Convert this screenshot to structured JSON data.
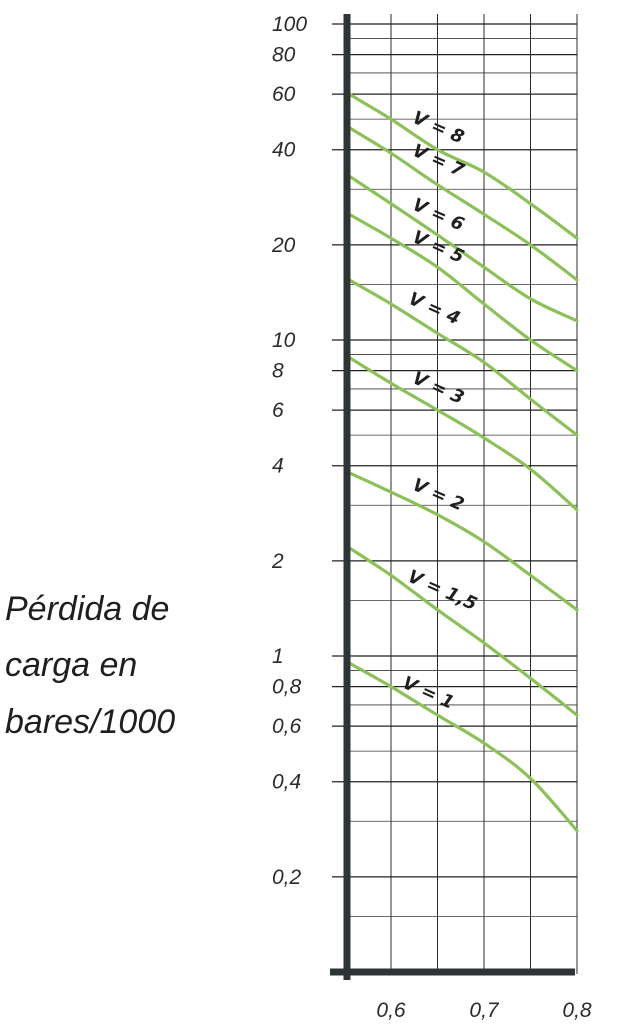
{
  "chart_data": {
    "type": "line",
    "ylabel": [
      "Pérdida de",
      "carga en",
      "bares/1000"
    ],
    "xlabel": "",
    "x_ticks": [
      "0,6",
      "0,7",
      "0,8"
    ],
    "y_ticks": [
      "100",
      "80",
      "60",
      "40",
      "20",
      "10",
      "8",
      "6",
      "4",
      "2",
      "1",
      "0,8",
      "0,6",
      "0,4",
      "0,2"
    ],
    "y_scale": "log",
    "xlim": [
      0.55,
      0.8
    ],
    "ylim": [
      0.1,
      100
    ],
    "grid": true,
    "line_color": "#8cc15a",
    "axis_color": "#2e3436",
    "series": [
      {
        "name": "V = 8",
        "x": [
          0.555,
          0.6,
          0.65,
          0.7,
          0.75,
          0.8
        ],
        "y": [
          60,
          50,
          40,
          34,
          27,
          21
        ]
      },
      {
        "name": "V = 7",
        "x": [
          0.555,
          0.6,
          0.65,
          0.7,
          0.75,
          0.8
        ],
        "y": [
          47,
          39,
          31,
          25,
          20,
          15.5
        ]
      },
      {
        "name": "V = 6",
        "x": [
          0.555,
          0.6,
          0.65,
          0.7,
          0.75,
          0.8
        ],
        "y": [
          33,
          27,
          21.5,
          17,
          13.5,
          11.5
        ]
      },
      {
        "name": "V = 5",
        "x": [
          0.555,
          0.6,
          0.65,
          0.7,
          0.75,
          0.8
        ],
        "y": [
          25,
          21,
          17,
          13,
          10,
          8
        ]
      },
      {
        "name": "V = 4",
        "x": [
          0.555,
          0.6,
          0.65,
          0.7,
          0.75,
          0.8
        ],
        "y": [
          15.5,
          13,
          10.5,
          8.5,
          6.5,
          5
        ]
      },
      {
        "name": "V = 3",
        "x": [
          0.555,
          0.6,
          0.65,
          0.7,
          0.75,
          0.8
        ],
        "y": [
          8.8,
          7.3,
          6,
          4.9,
          3.9,
          2.9
        ]
      },
      {
        "name": "V = 2",
        "x": [
          0.555,
          0.6,
          0.65,
          0.7,
          0.75,
          0.8
        ],
        "y": [
          3.8,
          3.3,
          2.8,
          2.3,
          1.8,
          1.4
        ]
      },
      {
        "name": "V = 1,5",
        "x": [
          0.555,
          0.6,
          0.65,
          0.7,
          0.75,
          0.8
        ],
        "y": [
          2.2,
          1.8,
          1.4,
          1.1,
          0.85,
          0.65
        ]
      },
      {
        "name": "V = 1",
        "x": [
          0.555,
          0.6,
          0.65,
          0.7,
          0.75,
          0.8
        ],
        "y": [
          0.95,
          0.8,
          0.65,
          0.53,
          0.41,
          0.28
        ]
      }
    ]
  }
}
